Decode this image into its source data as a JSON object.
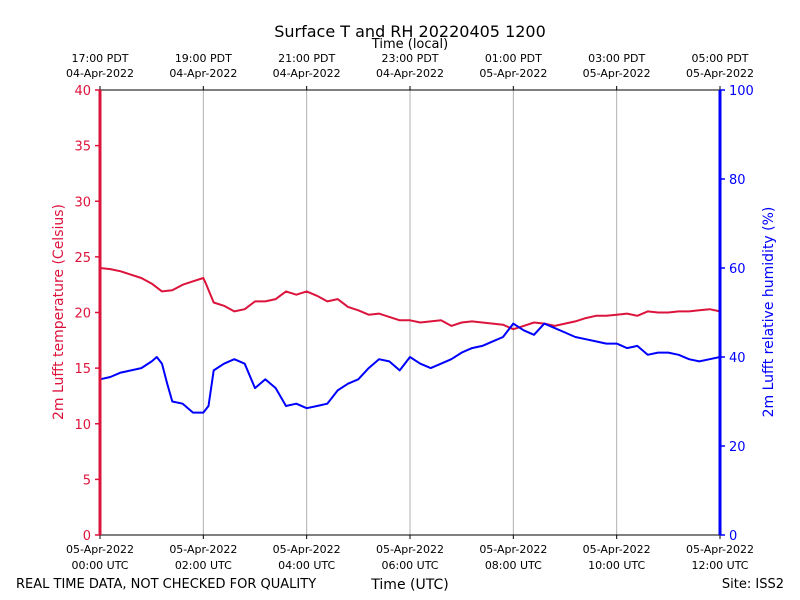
{
  "chart_data": {
    "type": "line",
    "title": "Surface T and RH 20220405 1200",
    "top_axis_label": "Time (local)",
    "xlabel": "Time (UTC)",
    "ylabel_left": "2m Lufft temperature (Celsius)",
    "ylabel_right": "2m Lufft relative humidity (%)",
    "footer_left": "REAL TIME DATA, NOT CHECKED FOR QUALITY",
    "footer_right": "Site: ISS2",
    "xlim_hours": [
      0,
      12
    ],
    "ylim_left": [
      0,
      40
    ],
    "ylim_right": [
      0,
      100
    ],
    "grid": "vertical",
    "colors": {
      "temperature": "#dc143c",
      "humidity": "#0000ff",
      "grid": "#b0b0b0",
      "axis": "#000000"
    },
    "left_ticks": [
      0,
      5,
      10,
      15,
      20,
      25,
      30,
      35,
      40
    ],
    "right_ticks": [
      0,
      20,
      40,
      60,
      80,
      100
    ],
    "bottom_ticks": [
      {
        "hour": 0,
        "line1": "05-Apr-2022",
        "line2": "00:00 UTC"
      },
      {
        "hour": 2,
        "line1": "05-Apr-2022",
        "line2": "02:00 UTC"
      },
      {
        "hour": 4,
        "line1": "05-Apr-2022",
        "line2": "04:00 UTC"
      },
      {
        "hour": 6,
        "line1": "05-Apr-2022",
        "line2": "06:00 UTC"
      },
      {
        "hour": 8,
        "line1": "05-Apr-2022",
        "line2": "08:00 UTC"
      },
      {
        "hour": 10,
        "line1": "05-Apr-2022",
        "line2": "10:00 UTC"
      },
      {
        "hour": 12,
        "line1": "05-Apr-2022",
        "line2": "12:00 UTC"
      }
    ],
    "top_ticks": [
      {
        "hour": 0,
        "line1": "17:00 PDT",
        "line2": "04-Apr-2022"
      },
      {
        "hour": 2,
        "line1": "19:00 PDT",
        "line2": "04-Apr-2022"
      },
      {
        "hour": 4,
        "line1": "21:00 PDT",
        "line2": "04-Apr-2022"
      },
      {
        "hour": 6,
        "line1": "23:00 PDT",
        "line2": "04-Apr-2022"
      },
      {
        "hour": 8,
        "line1": "01:00 PDT",
        "line2": "05-Apr-2022"
      },
      {
        "hour": 10,
        "line1": "03:00 PDT",
        "line2": "05-Apr-2022"
      },
      {
        "hour": 12,
        "line1": "05:00 PDT",
        "line2": "05-Apr-2022"
      }
    ],
    "series": [
      {
        "name": "2m Lufft temperature (Celsius)",
        "axis": "left",
        "color": "#dc143c",
        "x": [
          0,
          0.2,
          0.4,
          0.6,
          0.8,
          1.0,
          1.2,
          1.4,
          1.6,
          1.8,
          2.0,
          2.05,
          2.2,
          2.4,
          2.6,
          2.8,
          3.0,
          3.2,
          3.4,
          3.6,
          3.8,
          4.0,
          4.2,
          4.4,
          4.6,
          4.8,
          5.0,
          5.2,
          5.4,
          5.6,
          5.8,
          6.0,
          6.2,
          6.4,
          6.6,
          6.8,
          7.0,
          7.2,
          7.4,
          7.6,
          7.8,
          8.0,
          8.2,
          8.4,
          8.6,
          8.8,
          9.0,
          9.2,
          9.4,
          9.6,
          9.8,
          10.0,
          10.2,
          10.4,
          10.6,
          10.8,
          11.0,
          11.2,
          11.4,
          11.6,
          11.8,
          12.0
        ],
        "values": [
          24.0,
          23.9,
          23.7,
          23.4,
          23.1,
          22.6,
          21.9,
          22.0,
          22.5,
          22.8,
          23.1,
          22.6,
          20.9,
          20.6,
          20.1,
          20.3,
          21.0,
          21.0,
          21.2,
          21.9,
          21.6,
          21.9,
          21.5,
          21.0,
          21.2,
          20.5,
          20.2,
          19.8,
          19.9,
          19.6,
          19.3,
          19.3,
          19.1,
          19.2,
          19.3,
          18.8,
          19.1,
          19.2,
          19.1,
          19.0,
          18.9,
          18.5,
          18.8,
          19.1,
          19.0,
          18.8,
          19.0,
          19.2,
          19.5,
          19.7,
          19.7,
          19.8,
          19.9,
          19.7,
          20.1,
          20.0,
          20.0,
          20.1,
          20.1,
          20.2,
          20.3,
          20.1
        ]
      },
      {
        "name": "2m Lufft relative humidity (%)",
        "axis": "right",
        "color": "#0000ff",
        "x": [
          0,
          0.2,
          0.4,
          0.6,
          0.8,
          1.0,
          1.1,
          1.2,
          1.3,
          1.4,
          1.6,
          1.8,
          2.0,
          2.1,
          2.2,
          2.4,
          2.6,
          2.8,
          3.0,
          3.2,
          3.4,
          3.6,
          3.8,
          4.0,
          4.2,
          4.4,
          4.6,
          4.8,
          5.0,
          5.2,
          5.4,
          5.6,
          5.8,
          6.0,
          6.2,
          6.4,
          6.6,
          6.8,
          7.0,
          7.2,
          7.4,
          7.6,
          7.8,
          8.0,
          8.2,
          8.4,
          8.6,
          8.8,
          9.0,
          9.2,
          9.4,
          9.6,
          9.8,
          10.0,
          10.2,
          10.4,
          10.6,
          10.8,
          11.0,
          11.2,
          11.4,
          11.6,
          11.8,
          12.0
        ],
        "values": [
          35.0,
          35.5,
          36.5,
          37.0,
          37.5,
          39.0,
          40.0,
          38.5,
          34.0,
          30.0,
          29.5,
          27.5,
          27.5,
          29.0,
          37.0,
          38.5,
          39.5,
          38.5,
          33.0,
          35.0,
          33.0,
          29.0,
          29.5,
          28.5,
          29.0,
          29.5,
          32.5,
          34.0,
          35.0,
          37.5,
          39.5,
          39.0,
          37.0,
          40.0,
          38.5,
          37.5,
          38.5,
          39.5,
          41.0,
          42.0,
          42.5,
          43.5,
          44.5,
          47.5,
          46.0,
          45.0,
          47.5,
          46.5,
          45.5,
          44.5,
          44.0,
          43.5,
          43.0,
          43.0,
          42.0,
          42.5,
          40.5,
          41.0,
          41.0,
          40.5,
          39.5,
          39.0,
          39.5,
          40.0
        ]
      }
    ]
  }
}
